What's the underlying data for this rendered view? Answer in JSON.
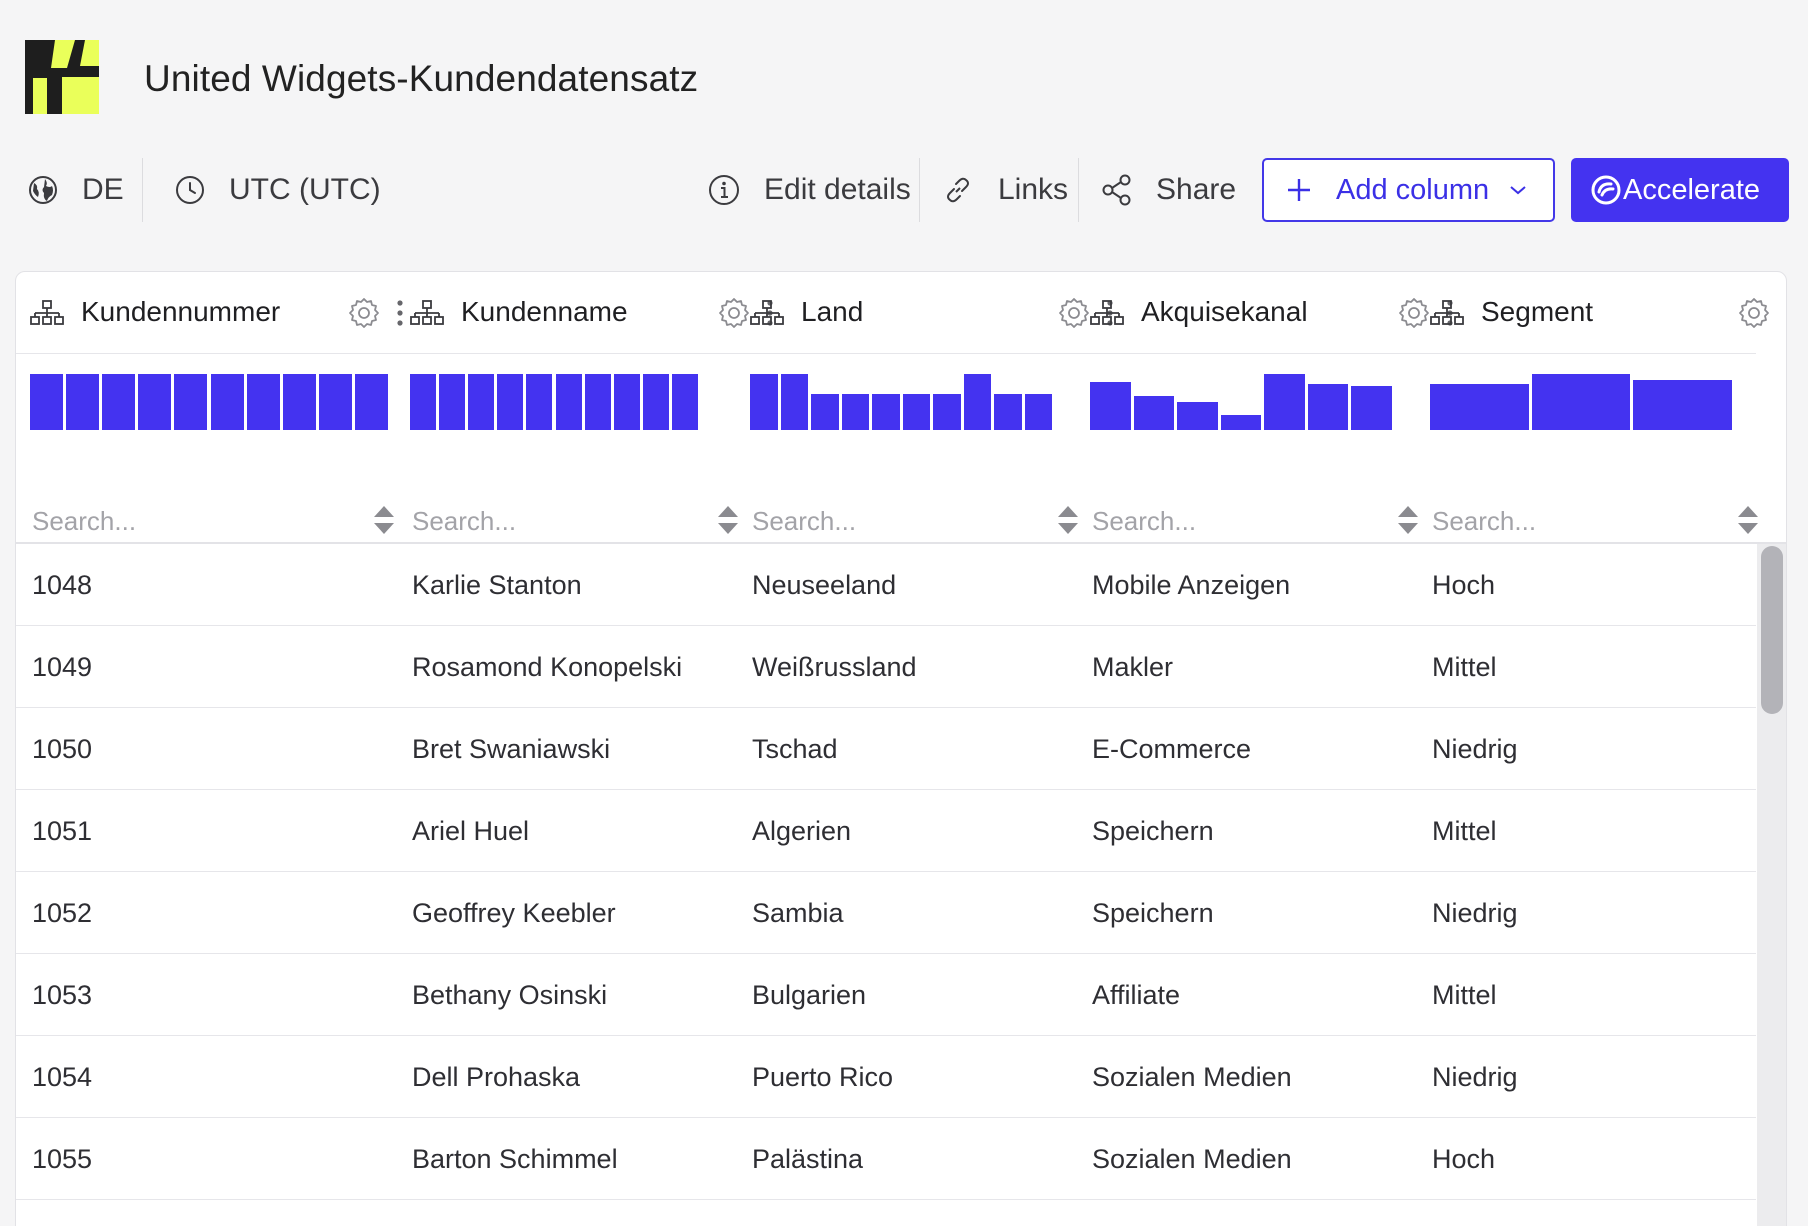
{
  "app": {
    "title": "United Widgets-Kundendatensatz",
    "logo": "logo-icon",
    "colors": {
      "accent": "#4433f0",
      "logo_yellow": "#eaff5a",
      "logo_dark": "#1e1e1e"
    }
  },
  "toolbar": {
    "locale_label": "DE",
    "timezone_label": "UTC (UTC)",
    "edit_details_label": "Edit details",
    "links_label": "Links",
    "share_label": "Share",
    "add_column_label": "Add column",
    "accelerate_label": "Accelerate"
  },
  "columns": [
    {
      "label": "Kundennummer",
      "search_placeholder": "Search...",
      "histogram": [
        1,
        1,
        1,
        1,
        1,
        1,
        1,
        1,
        1,
        1
      ]
    },
    {
      "label": "Kundenname",
      "search_placeholder": "Search...",
      "histogram": [
        1,
        1,
        1,
        1,
        1,
        1,
        1,
        1,
        1,
        1
      ]
    },
    {
      "label": "Land",
      "search_placeholder": "Search...",
      "histogram": [
        1,
        1,
        0.65,
        0.65,
        0.65,
        0.65,
        0.65,
        1,
        0.65,
        0.65
      ]
    },
    {
      "label": "Akquisekanal",
      "search_placeholder": "Search...",
      "histogram": [
        0.86,
        0.6,
        0.5,
        0.27,
        1,
        0.82,
        0.78
      ]
    },
    {
      "label": "Segment",
      "search_placeholder": "Search...",
      "histogram": [
        0.82,
        1,
        0.9
      ]
    }
  ],
  "rows": [
    [
      "1048",
      "Karlie Stanton",
      "Neuseeland",
      "Mobile Anzeigen",
      "Hoch"
    ],
    [
      "1049",
      "Rosamond Konopelski",
      "Weißrussland",
      "Makler",
      "Mittel"
    ],
    [
      "1050",
      "Bret Swaniawski",
      "Tschad",
      "E-Commerce",
      "Niedrig"
    ],
    [
      "1051",
      "Ariel Huel",
      "Algerien",
      "Speichern",
      "Mittel"
    ],
    [
      "1052",
      "Geoffrey Keebler",
      "Sambia",
      "Speichern",
      "Niedrig"
    ],
    [
      "1053",
      "Bethany Osinski",
      "Bulgarien",
      "Affiliate",
      "Mittel"
    ],
    [
      "1054",
      "Dell Prohaska",
      "Puerto Rico",
      "Sozialen Medien",
      "Niedrig"
    ],
    [
      "1055",
      "Barton Schimmel",
      "Palästina",
      "Sozialen Medien",
      "Hoch"
    ]
  ]
}
